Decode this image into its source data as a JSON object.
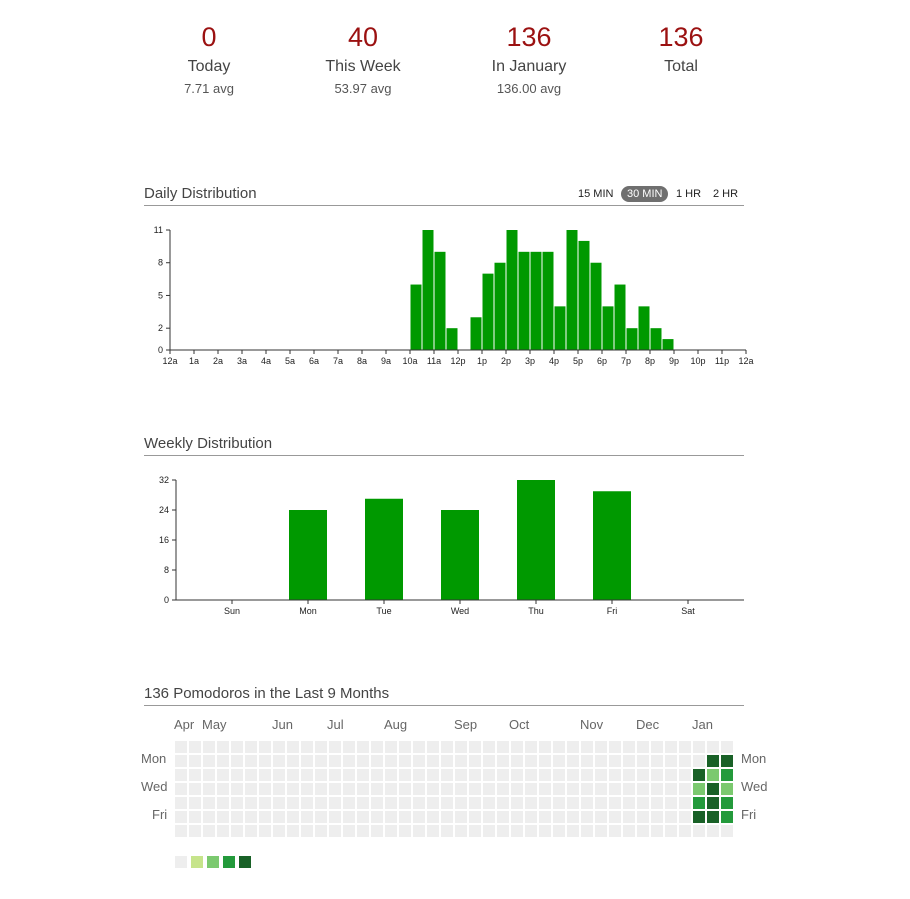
{
  "stats": [
    {
      "value": "0",
      "label": "Today",
      "avg": "7.71 avg"
    },
    {
      "value": "40",
      "label": "This Week",
      "avg": "53.97 avg"
    },
    {
      "value": "136",
      "label": "In January",
      "avg": "136.00 avg"
    },
    {
      "value": "136",
      "label": "Total",
      "avg": ""
    }
  ],
  "colors": {
    "bar": "#009900",
    "accent": "#9b1111"
  },
  "daily": {
    "title": "Daily Distribution",
    "resolutions": [
      "15 MIN",
      "30 MIN",
      "1 HR",
      "2 HR"
    ],
    "active_resolution": "30 MIN"
  },
  "weekly": {
    "title": "Weekly Distribution"
  },
  "heatmap": {
    "title": "136 Pomodoros in the Last 9 Months",
    "months": [
      "Apr",
      "May",
      "Jun",
      "Jul",
      "Aug",
      "Sep",
      "Oct",
      "Nov",
      "Dec",
      "Jan"
    ],
    "days": [
      "Mon",
      "Wed",
      "Fri"
    ],
    "palette": [
      "#eeeeee",
      "#c6e48b",
      "#7bc96f",
      "#239a3b",
      "#196127"
    ],
    "weeks": 40,
    "recent_weeks": [
      [
        0,
        0,
        4,
        2,
        3,
        4,
        0
      ],
      [
        0,
        4,
        2,
        4,
        4,
        4,
        0
      ],
      [
        0,
        4,
        3,
        2,
        3,
        3,
        0
      ]
    ]
  },
  "chart_data": [
    {
      "type": "bar",
      "title": "Daily Distribution",
      "x_tick_labels": [
        "12a",
        "1a",
        "2a",
        "3a",
        "4a",
        "5a",
        "6a",
        "7a",
        "8a",
        "9a",
        "10a",
        "11a",
        "12p",
        "1p",
        "2p",
        "3p",
        "4p",
        "5p",
        "6p",
        "7p",
        "8p",
        "9p",
        "10p",
        "11p",
        "12a"
      ],
      "y_ticks": [
        0,
        2,
        5,
        8,
        11
      ],
      "ylim": [
        0,
        11
      ],
      "bin_minutes": 30,
      "values": [
        0,
        0,
        0,
        0,
        0,
        0,
        0,
        0,
        0,
        0,
        0,
        0,
        0,
        0,
        0,
        0,
        0,
        0,
        0,
        0,
        6,
        11,
        9,
        2,
        0,
        3,
        7,
        8,
        11,
        9,
        9,
        9,
        4,
        11,
        10,
        8,
        4,
        6,
        2,
        4,
        2,
        1,
        0,
        0,
        0,
        0,
        0,
        0
      ]
    },
    {
      "type": "bar",
      "title": "Weekly Distribution",
      "categories": [
        "Sun",
        "Mon",
        "Tue",
        "Wed",
        "Thu",
        "Fri",
        "Sat"
      ],
      "values": [
        0,
        24,
        27,
        24,
        32,
        29,
        0
      ],
      "y_ticks": [
        0,
        8,
        16,
        24,
        32
      ],
      "ylim": [
        0,
        32
      ]
    }
  ]
}
